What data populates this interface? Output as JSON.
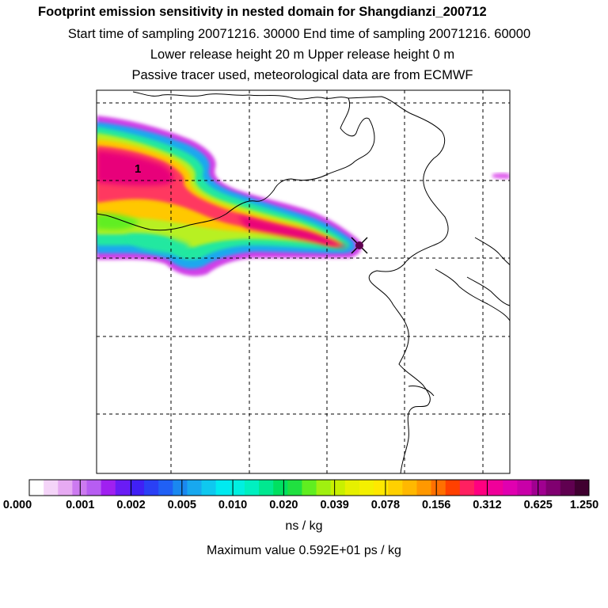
{
  "titles": {
    "line1": "Footprint emission sensitivity in nested domain for Shangdianzi_200712",
    "line2": "Start time of sampling 20071216. 30000     End time of sampling 20071216. 60000",
    "line3": "Lower release height   20 m          Upper release height    0 m",
    "line4": "Passive tracer used, meteorological data are from ECMWF"
  },
  "map": {
    "contour_label": "1",
    "station_marker": "x-marker"
  },
  "colorbar": {
    "ticks": [
      "0.000",
      "0.001",
      "0.002",
      "0.005",
      "0.010",
      "0.020",
      "0.039",
      "0.078",
      "0.156",
      "0.312",
      "0.625",
      "1.250"
    ],
    "colors": [
      "#ffffff",
      "#f4d4f8",
      "#e6aaf2",
      "#cc7af0",
      "#b75df2",
      "#a020f0",
      "#6a1cf5",
      "#4020f5",
      "#2a40f5",
      "#2060f5",
      "#1a88f0",
      "#18a8ef",
      "#0fc8ef",
      "#00eaf0",
      "#00f0e0",
      "#00f0c0",
      "#00e890",
      "#00e060",
      "#20e040",
      "#60ee20",
      "#a0f010",
      "#c8f000",
      "#e6f000",
      "#f4f000",
      "#ffe800",
      "#ffd000",
      "#ffb800",
      "#ff9800",
      "#ff7000",
      "#ff4000",
      "#ff2060",
      "#ff0080",
      "#f0009a",
      "#e000b0",
      "#c800a8",
      "#a00090",
      "#800070",
      "#600050",
      "#400030"
    ],
    "units": "ns / kg",
    "max_value": "Maximum value  0.592E+01 ps / kg"
  }
}
